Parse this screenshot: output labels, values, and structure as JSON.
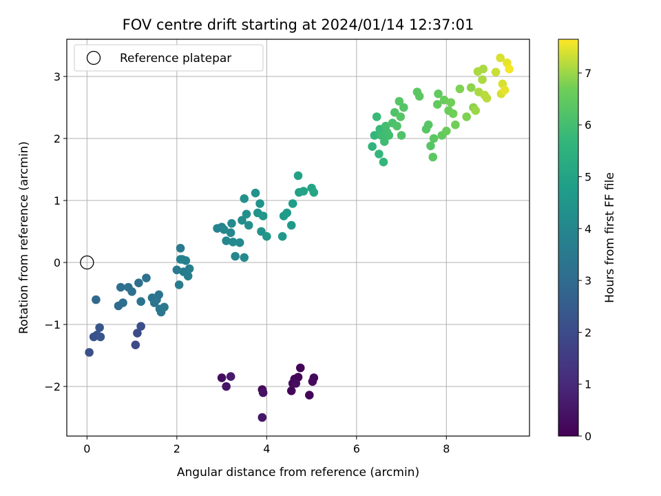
{
  "chart_data": {
    "type": "scatter",
    "title": "FOV centre drift starting at 2024/01/14 12:37:01",
    "xlabel": "Angular distance from reference (arcmin)",
    "ylabel": "Rotation from reference (arcmin)",
    "xlim": [
      -0.45,
      9.85
    ],
    "ylim": [
      -2.8,
      3.6
    ],
    "xticks": [
      0,
      2,
      4,
      6,
      8
    ],
    "yticks": [
      -2,
      -1,
      0,
      1,
      2,
      3
    ],
    "xtick_labels": [
      "0",
      "2",
      "4",
      "6",
      "8"
    ],
    "ytick_labels": [
      "−2",
      "−1",
      "0",
      "1",
      "2",
      "3"
    ],
    "grid": true,
    "legend": {
      "position": "top-left",
      "entries": [
        "Reference platepar"
      ]
    },
    "reference_point": {
      "x": 0,
      "y": 0,
      "marker": "open-circle",
      "label": "Reference platepar"
    },
    "colorbar": {
      "label": "Hours from first FF file",
      "colormap": "viridis",
      "range": [
        0,
        7.65
      ],
      "ticks": [
        0,
        1,
        2,
        3,
        4,
        5,
        6,
        7
      ],
      "tick_labels": [
        "0",
        "1",
        "2",
        "3",
        "4",
        "5",
        "6",
        "7"
      ]
    },
    "points": [
      [
        3.0,
        -1.86,
        0.3
      ],
      [
        3.1,
        -2.0,
        0.5
      ],
      [
        3.2,
        -1.84,
        0.6
      ],
      [
        3.9,
        -2.05,
        0.2
      ],
      [
        3.92,
        -2.1,
        0.4
      ],
      [
        3.9,
        -2.5,
        0.5
      ],
      [
        4.55,
        -2.07,
        0.1
      ],
      [
        4.58,
        -1.95,
        0.2
      ],
      [
        4.62,
        -1.88,
        0.15
      ],
      [
        4.7,
        -1.85,
        0.1
      ],
      [
        4.75,
        -1.7,
        0.1
      ],
      [
        4.95,
        -2.14,
        0.1
      ],
      [
        5.02,
        -1.92,
        0.25
      ],
      [
        5.05,
        -1.86,
        0.2
      ],
      [
        4.65,
        -1.95,
        0.3
      ],
      [
        1.08,
        -1.33,
        1.9
      ],
      [
        1.12,
        -1.14,
        2.0
      ],
      [
        1.2,
        -1.03,
        2.1
      ],
      [
        0.05,
        -1.45,
        2.1
      ],
      [
        0.15,
        -1.2,
        2.2
      ],
      [
        0.22,
        -1.17,
        2.2
      ],
      [
        0.28,
        -1.05,
        2.3
      ],
      [
        0.3,
        -1.2,
        2.3
      ],
      [
        0.2,
        -0.6,
        2.9
      ],
      [
        0.7,
        -0.7,
        3.0
      ],
      [
        0.75,
        -0.4,
        3.1
      ],
      [
        0.8,
        -0.65,
        3.1
      ],
      [
        0.92,
        -0.4,
        3.2
      ],
      [
        1.0,
        -0.47,
        3.2
      ],
      [
        1.15,
        -0.33,
        3.1
      ],
      [
        1.2,
        -0.63,
        3.3
      ],
      [
        1.32,
        -0.25,
        3.2
      ],
      [
        1.45,
        -0.57,
        3.3
      ],
      [
        1.5,
        -0.65,
        3.3
      ],
      [
        1.55,
        -0.6,
        3.4
      ],
      [
        1.6,
        -0.52,
        3.3
      ],
      [
        1.62,
        -0.75,
        3.4
      ],
      [
        1.65,
        -0.8,
        3.4
      ],
      [
        1.72,
        -0.72,
        3.5
      ],
      [
        2.0,
        -0.12,
        3.5
      ],
      [
        2.05,
        -0.36,
        3.6
      ],
      [
        2.08,
        0.23,
        3.5
      ],
      [
        2.12,
        0.05,
        3.6
      ],
      [
        2.15,
        -0.15,
        3.6
      ],
      [
        2.2,
        0.03,
        3.7
      ],
      [
        2.25,
        -0.22,
        3.7
      ],
      [
        2.28,
        -0.1,
        3.7
      ],
      [
        2.08,
        0.05,
        3.8
      ],
      [
        2.9,
        0.55,
        3.9
      ],
      [
        3.0,
        0.57,
        3.9
      ],
      [
        3.05,
        0.53,
        4.0
      ],
      [
        3.1,
        0.35,
        4.0
      ],
      [
        3.2,
        0.48,
        4.0
      ],
      [
        3.22,
        0.63,
        4.1
      ],
      [
        3.25,
        0.33,
        4.1
      ],
      [
        3.3,
        0.1,
        4.0
      ],
      [
        3.4,
        0.32,
        4.1
      ],
      [
        3.45,
        0.68,
        4.2
      ],
      [
        3.5,
        0.08,
        4.1
      ],
      [
        3.5,
        1.03,
        4.3
      ],
      [
        3.55,
        0.78,
        4.3
      ],
      [
        3.6,
        0.6,
        4.3
      ],
      [
        3.75,
        1.12,
        4.4
      ],
      [
        3.8,
        0.8,
        4.4
      ],
      [
        3.85,
        0.95,
        4.4
      ],
      [
        3.88,
        0.5,
        4.4
      ],
      [
        3.92,
        0.75,
        4.5
      ],
      [
        4.0,
        0.42,
        4.5
      ],
      [
        4.35,
        0.42,
        4.6
      ],
      [
        4.38,
        0.75,
        4.6
      ],
      [
        4.45,
        0.8,
        4.7
      ],
      [
        4.55,
        0.6,
        4.6
      ],
      [
        4.58,
        0.95,
        4.8
      ],
      [
        4.7,
        1.4,
        4.9
      ],
      [
        4.72,
        1.13,
        4.9
      ],
      [
        4.82,
        1.15,
        5.0
      ],
      [
        5.0,
        1.2,
        5.0
      ],
      [
        5.05,
        1.13,
        5.1
      ],
      [
        6.35,
        1.87,
        5.6
      ],
      [
        6.4,
        2.05,
        5.7
      ],
      [
        6.45,
        2.35,
        5.8
      ],
      [
        6.5,
        1.75,
        5.7
      ],
      [
        6.52,
        2.15,
        5.8
      ],
      [
        6.55,
        2.05,
        5.9
      ],
      [
        6.6,
        1.62,
        5.7
      ],
      [
        6.62,
        1.95,
        5.9
      ],
      [
        6.65,
        2.2,
        6.0
      ],
      [
        6.68,
        2.1,
        6.0
      ],
      [
        6.72,
        2.05,
        6.0
      ],
      [
        6.8,
        2.25,
        6.1
      ],
      [
        6.85,
        2.42,
        6.2
      ],
      [
        6.9,
        2.2,
        6.2
      ],
      [
        6.95,
        2.6,
        6.3
      ],
      [
        6.98,
        2.35,
        6.3
      ],
      [
        7.0,
        2.05,
        6.2
      ],
      [
        7.05,
        2.5,
        6.3
      ],
      [
        7.35,
        2.75,
        6.4
      ],
      [
        7.4,
        2.68,
        6.4
      ],
      [
        7.55,
        2.15,
        6.3
      ],
      [
        7.6,
        2.22,
        6.3
      ],
      [
        7.65,
        1.88,
        6.3
      ],
      [
        7.7,
        1.7,
        6.4
      ],
      [
        7.72,
        2.0,
        6.4
      ],
      [
        7.8,
        2.55,
        6.5
      ],
      [
        7.82,
        2.72,
        6.5
      ],
      [
        7.9,
        2.05,
        6.5
      ],
      [
        7.95,
        2.62,
        6.6
      ],
      [
        8.0,
        2.12,
        6.6
      ],
      [
        8.05,
        2.45,
        6.6
      ],
      [
        8.1,
        2.58,
        6.7
      ],
      [
        8.15,
        2.4,
        6.7
      ],
      [
        8.2,
        2.22,
        6.7
      ],
      [
        8.3,
        2.8,
        6.8
      ],
      [
        8.45,
        2.35,
        6.8
      ],
      [
        8.55,
        2.82,
        6.9
      ],
      [
        8.6,
        2.5,
        6.9
      ],
      [
        8.65,
        2.45,
        7.0
      ],
      [
        8.7,
        3.08,
        7.1
      ],
      [
        8.72,
        2.75,
        7.1
      ],
      [
        8.8,
        2.95,
        7.1
      ],
      [
        8.82,
        3.12,
        7.1
      ],
      [
        8.85,
        2.7,
        7.2
      ],
      [
        8.9,
        2.65,
        7.2
      ],
      [
        9.1,
        3.07,
        7.3
      ],
      [
        9.2,
        3.3,
        7.4
      ],
      [
        9.22,
        2.72,
        7.4
      ],
      [
        9.25,
        2.88,
        7.4
      ],
      [
        9.3,
        2.78,
        7.5
      ],
      [
        9.35,
        3.22,
        7.5
      ],
      [
        9.4,
        3.12,
        7.6
      ]
    ]
  }
}
